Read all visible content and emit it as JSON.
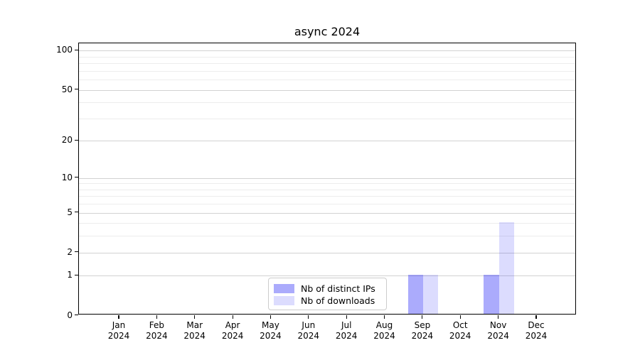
{
  "chart_data": {
    "type": "bar",
    "title": "async 2024",
    "categories": [
      "Jan 2024",
      "Feb 2024",
      "Mar 2024",
      "Apr 2024",
      "May 2024",
      "Jun 2024",
      "Jul 2024",
      "Aug 2024",
      "Sep 2024",
      "Oct 2024",
      "Nov 2024",
      "Dec 2024"
    ],
    "series": [
      {
        "name": "Nb of distinct IPs",
        "color": "rgba(10,10,245,0.34)",
        "values": [
          0,
          0,
          0,
          0,
          0,
          0,
          0,
          0,
          1,
          0,
          1,
          0
        ]
      },
      {
        "name": "Nb of downloads",
        "color": "rgba(10,10,245,0.14)",
        "values": [
          0,
          0,
          0,
          0,
          0,
          0,
          0,
          0,
          1,
          0,
          4,
          0
        ]
      }
    ],
    "xlabel": "",
    "ylabel": "",
    "yscale": "log1p",
    "y_ticks": [
      0,
      1,
      2,
      5,
      10,
      20,
      50,
      100
    ],
    "y_ticks_minor": [
      3,
      4,
      6,
      7,
      8,
      9,
      30,
      40,
      60,
      70,
      80,
      90
    ],
    "ylim": [
      0,
      113
    ],
    "grid": true,
    "legend_position": "lower-center-inside"
  }
}
